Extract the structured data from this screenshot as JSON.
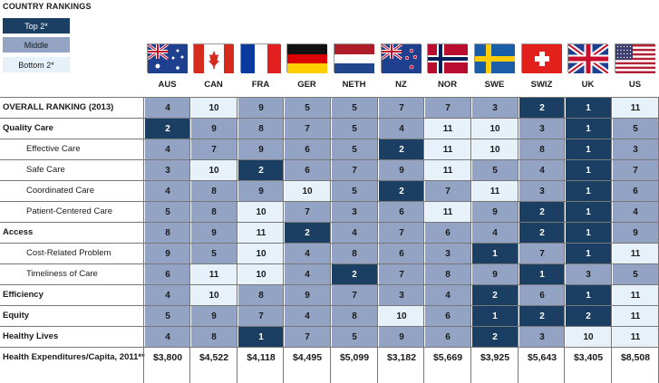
{
  "legend": {
    "title": "COUNTRY RANKINGS",
    "items": [
      {
        "label": "Top 2*",
        "tier": "top"
      },
      {
        "label": "Middle",
        "tier": "mid"
      },
      {
        "label": "Bottom 2*",
        "tier": "bot"
      }
    ]
  },
  "colors": {
    "top": "#1b3e63",
    "mid": "#93a3c4",
    "bot": "#e6f1f9"
  },
  "chart_data": {
    "type": "table",
    "columns": [
      "AUS",
      "CAN",
      "FRA",
      "GER",
      "NETH",
      "NZ",
      "NOR",
      "SWE",
      "SWIZ",
      "UK",
      "US"
    ],
    "flag_icons": [
      "australia-flag-icon",
      "canada-flag-icon",
      "france-flag-icon",
      "germany-flag-icon",
      "netherlands-flag-icon",
      "new-zealand-flag-icon",
      "norway-flag-icon",
      "sweden-flag-icon",
      "switzerland-flag-icon",
      "uk-flag-icon",
      "us-flag-icon"
    ],
    "rows": [
      {
        "label": "OVERALL RANKING (2013)",
        "style": "bold",
        "values": [
          4,
          10,
          9,
          5,
          5,
          7,
          7,
          3,
          2,
          1,
          11
        ],
        "tiers": [
          "mid",
          "bot",
          "mid",
          "mid",
          "mid",
          "mid",
          "mid",
          "mid",
          "top",
          "top",
          "bot"
        ]
      },
      {
        "label": "Quality Care",
        "style": "bold",
        "values": [
          2,
          9,
          8,
          7,
          5,
          4,
          11,
          10,
          3,
          1,
          5
        ],
        "tiers": [
          "top",
          "mid",
          "mid",
          "mid",
          "mid",
          "mid",
          "bot",
          "bot",
          "mid",
          "top",
          "mid"
        ]
      },
      {
        "label": "Effective Care",
        "style": "sub",
        "values": [
          4,
          7,
          9,
          6,
          5,
          2,
          11,
          10,
          8,
          1,
          3
        ],
        "tiers": [
          "mid",
          "mid",
          "mid",
          "mid",
          "mid",
          "top",
          "bot",
          "bot",
          "mid",
          "top",
          "mid"
        ]
      },
      {
        "label": "Safe Care",
        "style": "sub",
        "values": [
          3,
          10,
          2,
          6,
          7,
          9,
          11,
          5,
          4,
          1,
          7
        ],
        "tiers": [
          "mid",
          "bot",
          "top",
          "mid",
          "mid",
          "mid",
          "bot",
          "mid",
          "mid",
          "top",
          "mid"
        ]
      },
      {
        "label": "Coordinated Care",
        "style": "sub",
        "values": [
          4,
          8,
          9,
          10,
          5,
          2,
          7,
          11,
          3,
          1,
          6
        ],
        "tiers": [
          "mid",
          "mid",
          "mid",
          "bot",
          "mid",
          "top",
          "mid",
          "bot",
          "mid",
          "top",
          "mid"
        ]
      },
      {
        "label": "Patient-Centered Care",
        "style": "sub",
        "values": [
          5,
          8,
          10,
          7,
          3,
          6,
          11,
          9,
          2,
          1,
          4
        ],
        "tiers": [
          "mid",
          "mid",
          "bot",
          "mid",
          "mid",
          "mid",
          "bot",
          "mid",
          "top",
          "top",
          "mid"
        ]
      },
      {
        "label": "Access",
        "style": "bold",
        "values": [
          8,
          9,
          11,
          2,
          4,
          7,
          6,
          4,
          2,
          1,
          9
        ],
        "tiers": [
          "mid",
          "mid",
          "bot",
          "top",
          "mid",
          "mid",
          "mid",
          "mid",
          "top",
          "top",
          "mid"
        ]
      },
      {
        "label": "Cost-Related Problem",
        "style": "sub",
        "values": [
          9,
          5,
          10,
          4,
          8,
          6,
          3,
          1,
          7,
          1,
          11
        ],
        "tiers": [
          "mid",
          "mid",
          "bot",
          "mid",
          "mid",
          "mid",
          "mid",
          "top",
          "mid",
          "top",
          "bot"
        ]
      },
      {
        "label": "Timeliness of Care",
        "style": "sub",
        "values": [
          6,
          11,
          10,
          4,
          2,
          7,
          8,
          9,
          1,
          3,
          5
        ],
        "tiers": [
          "mid",
          "bot",
          "bot",
          "mid",
          "top",
          "mid",
          "mid",
          "mid",
          "top",
          "mid",
          "mid"
        ]
      },
      {
        "label": "Efficiency",
        "style": "bold",
        "values": [
          4,
          10,
          8,
          9,
          7,
          3,
          4,
          2,
          6,
          1,
          11
        ],
        "tiers": [
          "mid",
          "bot",
          "mid",
          "mid",
          "mid",
          "mid",
          "mid",
          "top",
          "mid",
          "top",
          "bot"
        ]
      },
      {
        "label": "Equity",
        "style": "bold",
        "values": [
          5,
          9,
          7,
          4,
          8,
          10,
          6,
          1,
          2,
          2,
          11
        ],
        "tiers": [
          "mid",
          "mid",
          "mid",
          "mid",
          "mid",
          "bot",
          "mid",
          "top",
          "top",
          "top",
          "bot"
        ]
      },
      {
        "label": "Healthy Lives",
        "style": "bold",
        "values": [
          4,
          8,
          1,
          7,
          5,
          9,
          6,
          2,
          3,
          10,
          11
        ],
        "tiers": [
          "mid",
          "mid",
          "top",
          "mid",
          "mid",
          "mid",
          "mid",
          "top",
          "mid",
          "bot",
          "bot"
        ]
      },
      {
        "label": "Health Expenditures/Capita, 2011**",
        "style": "bold",
        "values": [
          "$3,800",
          "$4,522",
          "$4,118",
          "$4,495",
          "$5,099",
          "$3,182",
          "$5,669",
          "$3,925",
          "$5,643",
          "$3,405",
          "$8,508"
        ],
        "tiers": [
          "money",
          "money",
          "money",
          "money",
          "money",
          "money",
          "money",
          "money",
          "money",
          "money",
          "money"
        ]
      }
    ]
  }
}
